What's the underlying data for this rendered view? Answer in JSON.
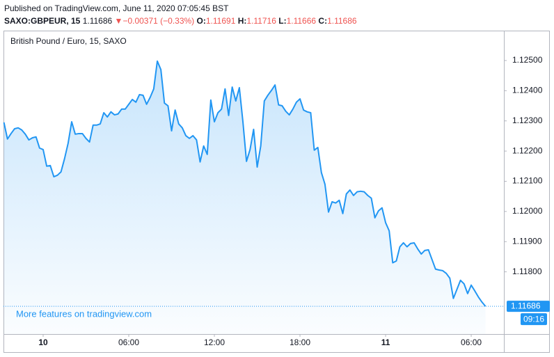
{
  "header": {
    "published": "Published on TradingView.com, June 11, 2020 07:05:45 BST",
    "symbol": "SAXO:GBPEUR, 15",
    "last": "1.11686",
    "change": "−0.00371 (−0.33%)",
    "ohlc": [
      {
        "label": "O:",
        "value": "1.11691"
      },
      {
        "label": "H:",
        "value": "1.11716"
      },
      {
        "label": "L:",
        "value": "1.11666"
      },
      {
        "label": "C:",
        "value": "1.11686"
      }
    ]
  },
  "chart_data": {
    "type": "area",
    "title": "British Pound / Euro, 15, SAXO",
    "watermark": "More features on tradingview.com",
    "color": "#2196f3",
    "grid": false,
    "x": [
      -2.75,
      -2.5,
      -2.25,
      -2,
      -1.75,
      -1.5,
      -1.25,
      -1,
      -0.75,
      -0.5,
      -0.25,
      0,
      0.25,
      0.5,
      0.75,
      1,
      1.25,
      1.5,
      1.75,
      2,
      2.25,
      2.5,
      2.75,
      3,
      3.25,
      3.5,
      3.75,
      4,
      4.25,
      4.5,
      4.75,
      5,
      5.25,
      5.5,
      5.75,
      6,
      6.25,
      6.5,
      6.75,
      7,
      7.25,
      7.5,
      7.75,
      8,
      8.25,
      8.5,
      8.75,
      9,
      9.25,
      9.5,
      9.75,
      10,
      10.25,
      10.5,
      10.75,
      11,
      11.25,
      11.5,
      11.75,
      12,
      12.25,
      12.5,
      12.75,
      13,
      13.25,
      13.5,
      13.75,
      14,
      14.25,
      14.5,
      14.75,
      15,
      15.25,
      15.5,
      15.75,
      16,
      16.25,
      16.5,
      16.75,
      17,
      17.25,
      17.5,
      17.75,
      18,
      18.25,
      18.5,
      18.75,
      19,
      19.25,
      19.5,
      19.75,
      20,
      20.25,
      20.5,
      20.75,
      21,
      21.25,
      21.5,
      21.75,
      22,
      22.25,
      22.5,
      22.75,
      23,
      23.25,
      23.5,
      23.75,
      24,
      24.25,
      24.5,
      24.75,
      25,
      25.25,
      25.5,
      25.75,
      26,
      26.25,
      26.5,
      26.75,
      27,
      27.25,
      27.5,
      27.75,
      28,
      28.25,
      28.5,
      28.75,
      29,
      29.25,
      29.5,
      29.75,
      30,
      30.25,
      30.5,
      30.75,
      31
    ],
    "values": [
      1.12295,
      1.1224,
      1.12258,
      1.12274,
      1.12277,
      1.1227,
      1.12256,
      1.12237,
      1.12244,
      1.12247,
      1.1221,
      1.12205,
      1.1215,
      1.12152,
      1.12115,
      1.1212,
      1.12131,
      1.12175,
      1.12226,
      1.12297,
      1.12256,
      1.12258,
      1.12258,
      1.12242,
      1.1223,
      1.12286,
      1.12286,
      1.1229,
      1.12327,
      1.12313,
      1.1233,
      1.1232,
      1.12323,
      1.12339,
      1.12339,
      1.12355,
      1.12371,
      1.12362,
      1.12387,
      1.12385,
      1.12355,
      1.12378,
      1.12406,
      1.12498,
      1.1247,
      1.12359,
      1.1235,
      1.12267,
      1.12336,
      1.1229,
      1.12277,
      1.12251,
      1.12242,
      1.12251,
      1.12237,
      1.12164,
      1.12217,
      1.12189,
      1.12369,
      1.12297,
      1.12327,
      1.12339,
      1.12406,
      1.12318,
      1.12412,
      1.12366,
      1.1241,
      1.12297,
      1.12166,
      1.12205,
      1.12272,
      1.12147,
      1.12217,
      1.12366,
      1.12385,
      1.12401,
      1.12419,
      1.12353,
      1.1235,
      1.12332,
      1.1232,
      1.12339,
      1.12362,
      1.12373,
      1.12336,
      1.1233,
      1.12327,
      1.12203,
      1.12212,
      1.12129,
      1.1209,
      1.11998,
      1.12032,
      1.12028,
      1.12037,
      1.11993,
      1.12058,
      1.12071,
      1.12053,
      1.12065,
      1.12067,
      1.12065,
      1.12053,
      1.12044,
      1.11979,
      1.12002,
      1.12012,
      1.11963,
      1.11936,
      1.1183,
      1.11836,
      1.11883,
      1.11896,
      1.11883,
      1.11894,
      1.11896,
      1.11876,
      1.11859,
      1.11871,
      1.11873,
      1.11841,
      1.11809,
      1.11806,
      1.11804,
      1.11795,
      1.11779,
      1.11712,
      1.11742,
      1.11772,
      1.1176,
      1.11728,
      1.11756,
      1.11737,
      1.11717,
      1.117,
      1.11686
    ],
    "xlim": [
      -2.78,
      32.29
    ],
    "xticks": [
      {
        "value": 0,
        "label": "10"
      },
      {
        "value": 6,
        "label": "06:00"
      },
      {
        "value": 12,
        "label": "12:00"
      },
      {
        "value": 18,
        "label": "18:00"
      },
      {
        "value": 24,
        "label": "11"
      },
      {
        "value": 30,
        "label": "06:00"
      }
    ],
    "ylim": [
      1.11594,
      1.12599
    ],
    "yticks": [
      {
        "value": 1.118,
        "label": "1.11800"
      },
      {
        "value": 1.119,
        "label": "1.11900"
      },
      {
        "value": 1.12,
        "label": "1.12000"
      },
      {
        "value": 1.121,
        "label": "1.12100"
      },
      {
        "value": 1.122,
        "label": "1.12200"
      },
      {
        "value": 1.123,
        "label": "1.12300"
      },
      {
        "value": 1.124,
        "label": "1.12400"
      },
      {
        "value": 1.125,
        "label": "1.12500"
      }
    ],
    "last_price": {
      "value": 1.11686,
      "label": "1.11686"
    },
    "countdown": "09:16"
  }
}
